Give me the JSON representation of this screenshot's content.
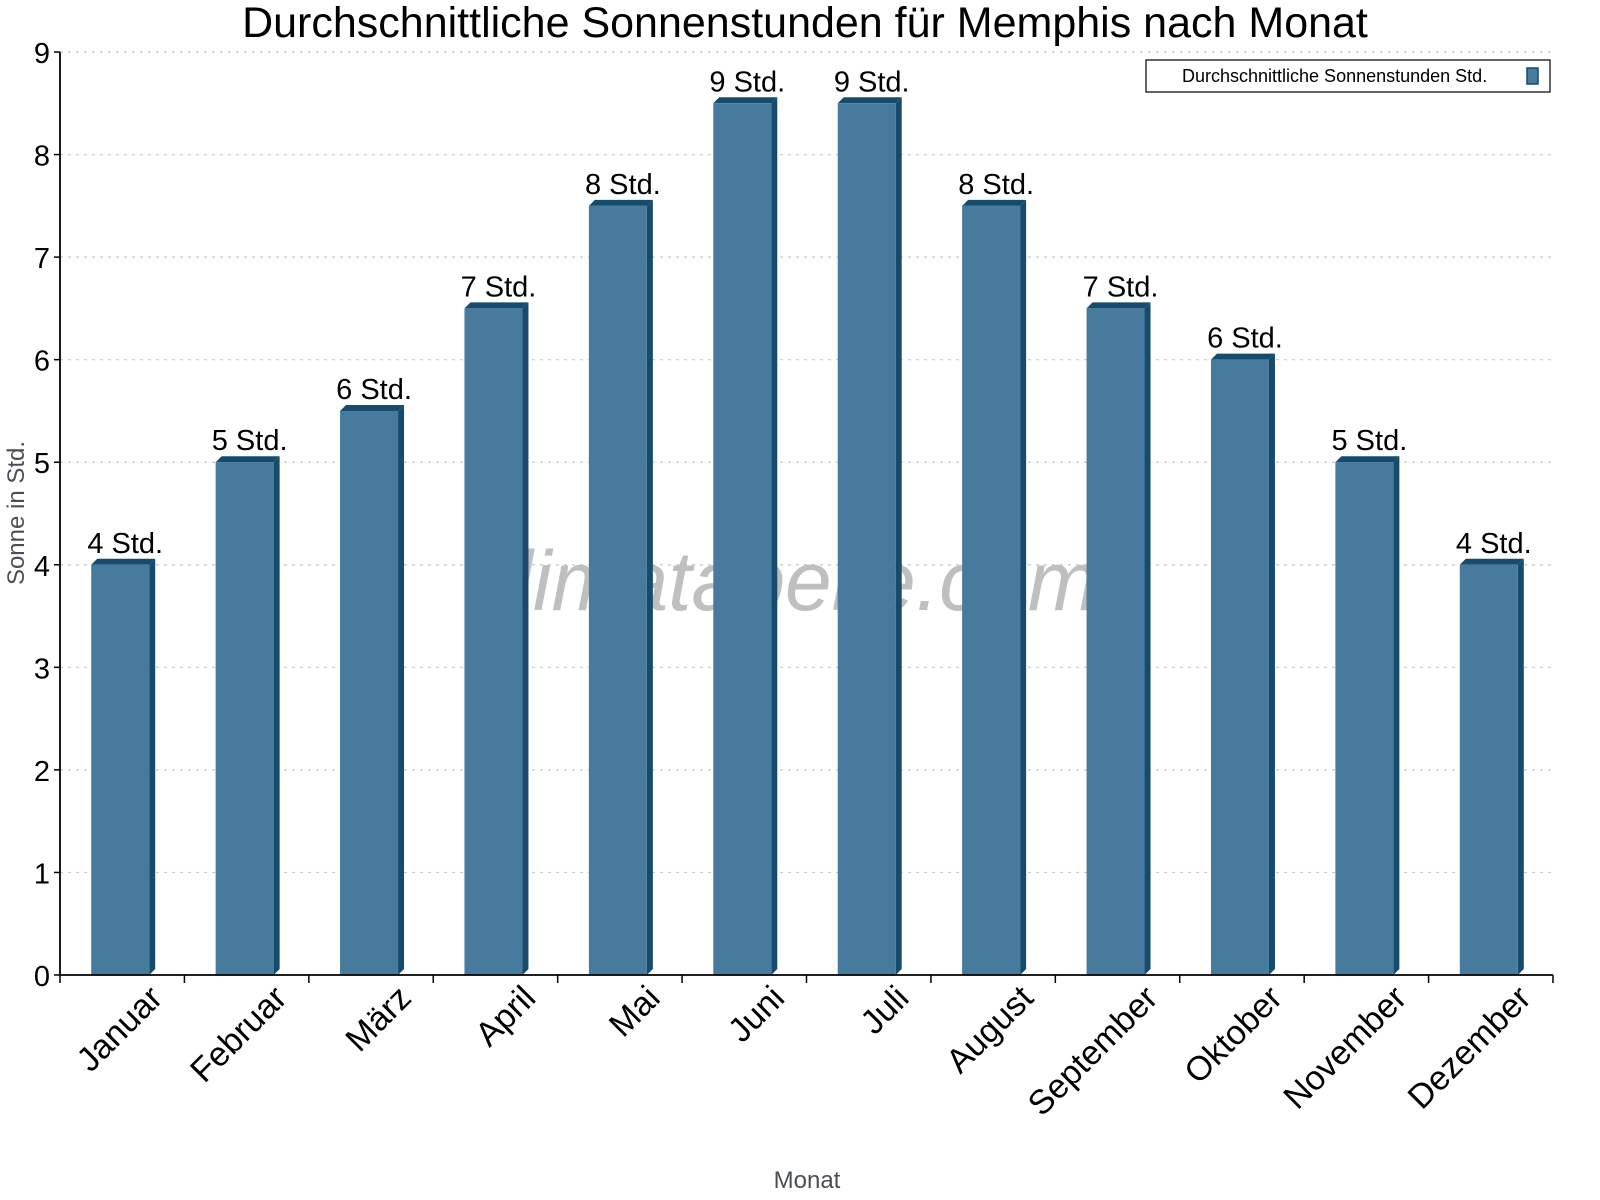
{
  "chart_data": {
    "type": "bar",
    "title": "Durchschnittliche Sonnenstunden für Memphis nach Monat",
    "xlabel": "Monat",
    "ylabel": "Sonne in Std.",
    "ylim": [
      0,
      9
    ],
    "yticks": [
      0,
      1,
      2,
      3,
      4,
      5,
      6,
      7,
      8,
      9
    ],
    "grid": true,
    "legend_position": "top-right",
    "categories": [
      "Januar",
      "Februar",
      "März",
      "April",
      "Mai",
      "Juni",
      "Juli",
      "August",
      "September",
      "Oktober",
      "November",
      "Dezember"
    ],
    "series": [
      {
        "name": "Durchschnittliche Sonnenstunden Std.",
        "color": "#467b9d",
        "values": [
          4,
          5,
          5.5,
          6.5,
          7.5,
          8.5,
          8.5,
          7.5,
          6.5,
          6,
          5,
          4
        ],
        "data_labels": [
          "4 Std.",
          "5 Std.",
          "6 Std.",
          "7 Std.",
          "8 Std.",
          "9 Std.",
          "9 Std.",
          "8 Std.",
          "7 Std.",
          "6 Std.",
          "5 Std.",
          "4 Std."
        ]
      }
    ],
    "watermark": "klimatabelle.com"
  },
  "colors": {
    "bar_face": "#467b9d",
    "bar_side": "#174b6b",
    "grid": "#c8c8c8"
  }
}
